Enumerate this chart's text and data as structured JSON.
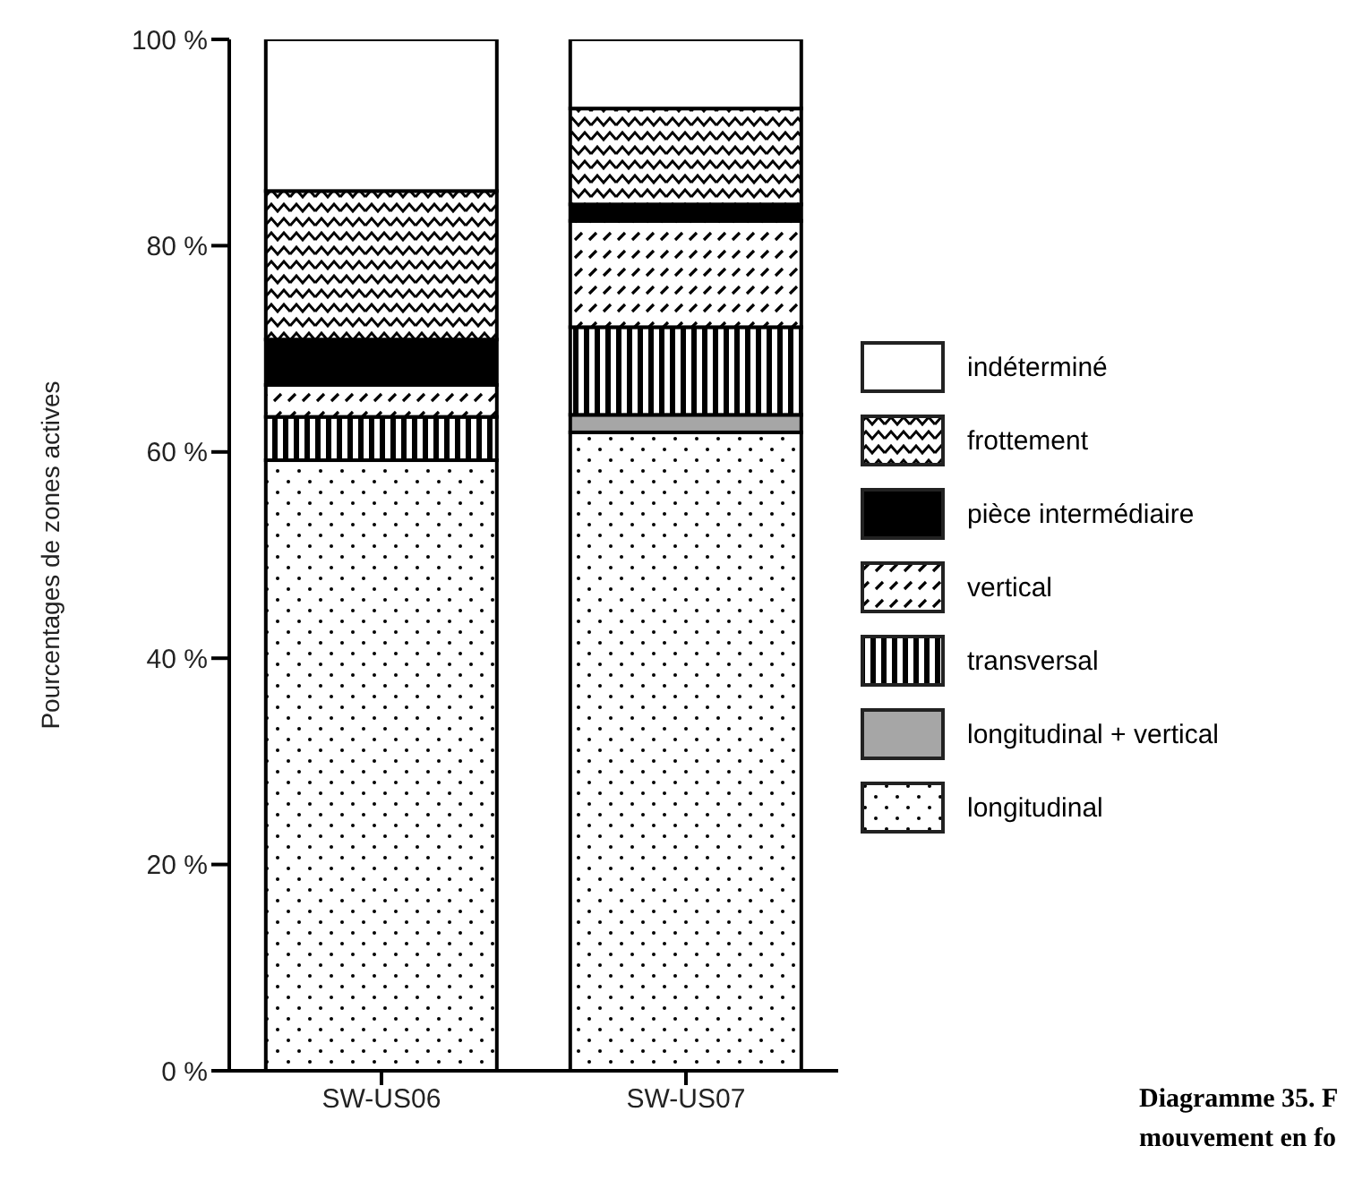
{
  "chart_data": {
    "type": "bar",
    "stacked": true,
    "ylabel": "Pourcentages de zones actives",
    "categories": [
      "SW-US06",
      "SW-US07"
    ],
    "ylim": [
      0,
      100
    ],
    "yticks": [
      {
        "value": 0,
        "label": "0 %"
      },
      {
        "value": 20,
        "label": "20 %"
      },
      {
        "value": 40,
        "label": "40 %"
      },
      {
        "value": 60,
        "label": "60 %"
      },
      {
        "value": 80,
        "label": "80 %"
      },
      {
        "value": 100,
        "label": "100 %"
      }
    ],
    "series": [
      {
        "name": "longitudinal",
        "color": "#000000",
        "values": [
          59.2,
          61.9
        ]
      },
      {
        "name": "longitudinal + vertical",
        "color": "#a6a6a6",
        "values": [
          0,
          1.7
        ]
      },
      {
        "name": "transversal",
        "color": "#000000",
        "values": [
          4.2,
          8.5
        ]
      },
      {
        "name": "vertical",
        "color": "#000000",
        "values": [
          3.1,
          10.3
        ]
      },
      {
        "name": "pièce intermédiaire",
        "color": "#000000",
        "values": [
          4.4,
          1.6
        ]
      },
      {
        "name": "frottement",
        "color": "#000000",
        "values": [
          14.4,
          9.3
        ]
      },
      {
        "name": "indéterminé",
        "color": "#ffffff",
        "values": [
          14.7,
          6.7
        ]
      }
    ],
    "legend": "right",
    "grid": false,
    "annotations": [
      "Diagramme 35. F",
      "mouvement en fo"
    ]
  }
}
